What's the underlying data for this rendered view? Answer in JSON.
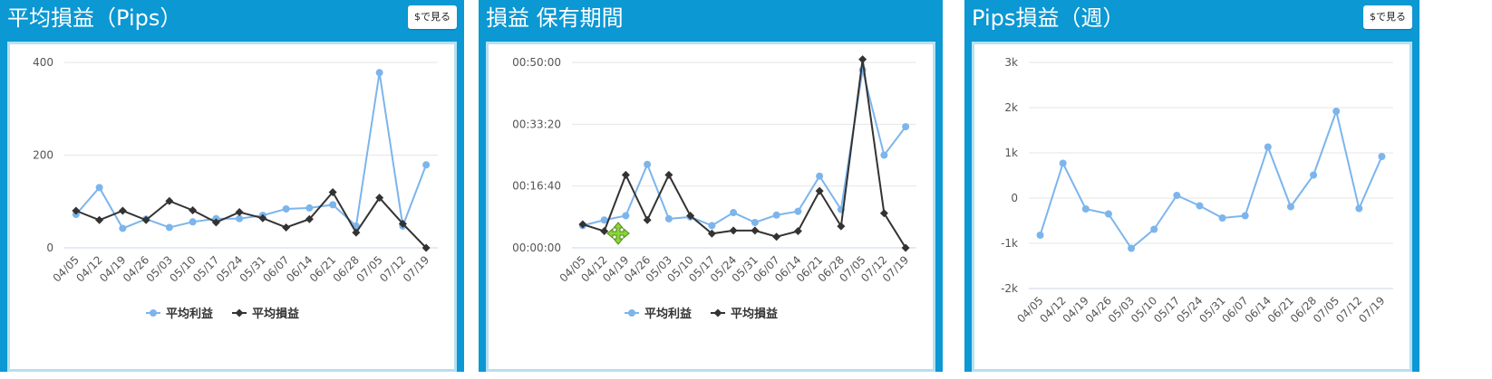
{
  "colors": {
    "panel_bg": "#0b98d3",
    "series_profit": "#7cb5ec",
    "series_loss": "#333333"
  },
  "panels": [
    {
      "title": "平均損益（Pips）",
      "usd_button": "$で見る"
    },
    {
      "title": "損益 保有期間"
    },
    {
      "title": "Pips損益（週）",
      "usd_button": "$で見る"
    }
  ],
  "overlay_icon": "move-cursor-icon",
  "chart_data": [
    {
      "type": "line",
      "categories": [
        "04/05",
        "04/12",
        "04/19",
        "04/26",
        "05/03",
        "05/10",
        "05/17",
        "05/24",
        "05/31",
        "06/07",
        "06/14",
        "06/21",
        "06/28",
        "07/05",
        "07/12",
        "07/19"
      ],
      "series": [
        {
          "name": "平均利益",
          "values": [
            72,
            130,
            42,
            62,
            44,
            56,
            63,
            63,
            70,
            84,
            86,
            93,
            47,
            378,
            47,
            179
          ]
        },
        {
          "name": "平均損益",
          "values": [
            80,
            60,
            80,
            60,
            101,
            81,
            55,
            77,
            64,
            44,
            62,
            120,
            33,
            108,
            52,
            0
          ]
        }
      ],
      "ylim": [
        0,
        400
      ],
      "yticks": [
        "0",
        "200",
        "400"
      ],
      "legend": "bottom-center",
      "grid": true
    },
    {
      "type": "line",
      "categories": [
        "04/05",
        "04/12",
        "04/19",
        "04/26",
        "05/03",
        "05/10",
        "05/17",
        "05/24",
        "05/31",
        "06/07",
        "06/14",
        "06/21",
        "06/28",
        "07/05",
        "07/12",
        "07/19"
      ],
      "series": [
        {
          "name": "平均利益",
          "values": [
            360,
            450,
            520,
            1350,
            470,
            500,
            360,
            570,
            410,
            530,
            590,
            1160,
            620,
            2880,
            1500,
            1960
          ]
        },
        {
          "name": "平均損益",
          "values": [
            380,
            270,
            1180,
            450,
            1180,
            520,
            230,
            280,
            280,
            180,
            270,
            920,
            350,
            3050,
            560,
            0
          ]
        }
      ],
      "ylim": [
        0,
        3000
      ],
      "yticks": [
        "00:00:00",
        "00:16:40",
        "00:33:20",
        "00:50:00"
      ],
      "legend": "bottom-center",
      "grid": true
    },
    {
      "type": "line",
      "categories": [
        "04/05",
        "04/12",
        "04/19",
        "04/26",
        "05/03",
        "05/10",
        "05/17",
        "05/24",
        "05/31",
        "06/07",
        "06/14",
        "06/21",
        "06/28",
        "07/05",
        "07/12",
        "07/19"
      ],
      "series": [
        {
          "values": [
            -820,
            770,
            -240,
            -350,
            -1110,
            -690,
            60,
            -170,
            -440,
            -390,
            1130,
            -190,
            510,
            1920,
            -230,
            920
          ]
        }
      ],
      "ylim": [
        -2000,
        3000
      ],
      "yticks": [
        "-2k",
        "-1k",
        "0",
        "1k",
        "2k",
        "3k"
      ],
      "legend": "none",
      "grid": true
    }
  ]
}
